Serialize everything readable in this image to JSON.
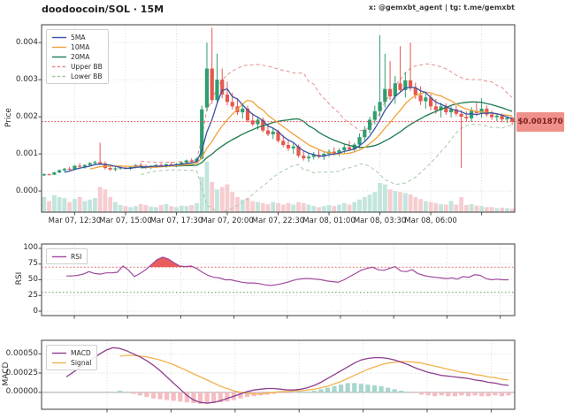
{
  "header": {
    "title": "doodoocoin/SOL · 15M",
    "watermark": "x: @gemxbt_agent | tg: t.me/gemxbt"
  },
  "colors": {
    "background": "#ffffff",
    "candle_up": "#2f9e70",
    "candle_down": "#e5584e",
    "vol_up": "#c3e5dd",
    "vol_down": "#f6cdd0",
    "ma5": "#3a53a4",
    "ma10": "#f2a23c",
    "ma20": "#1d7a4f",
    "bb_upper": "#e88d8d",
    "bb_lower": "#a9c7a9",
    "grid": "#d0d0d0",
    "axis": "#4d4d4d",
    "text": "#2b2b2b",
    "price_line": "#e04f4f",
    "price_tag_bg": "#f0908a",
    "price_tag_text": "#7a1f1f",
    "rsi_line": "#a04a9e",
    "rsi_fill": "#e84b4b",
    "overbought_line": "#e06666",
    "oversold_line": "#4ca64c",
    "macd_line": "#8e3e90",
    "signal_line": "#f2b24e",
    "hist_pos": "#a8d6ce",
    "hist_neg": "#f5bcc1",
    "zero_line": "#aaaaaa"
  },
  "chart_data": [
    {
      "type": "candlestick",
      "title": "doodoocoin/SOL · 15M",
      "ylabel": "Price",
      "ylim": [
        -0.00057,
        0.00448
      ],
      "ytick_values": [
        0.0,
        0.001,
        0.002,
        0.003,
        0.004
      ],
      "ytick_labels": [
        "0.000",
        "0.001",
        "0.002",
        "0.003",
        "0.004"
      ],
      "xtick_labels": [
        "Mar 07, 12:30",
        "Mar 07, 15:00",
        "Mar 07, 17:30",
        "Mar 07, 20:00",
        "Mar 07, 22:30",
        "Mar 08, 01:00",
        "Mar 08, 03:30",
        "Mar 08, 06:00",
        ""
      ],
      "legend": [
        {
          "label": "5MA",
          "color": "#3a53a4",
          "dash": false
        },
        {
          "label": "10MA",
          "color": "#f2a23c",
          "dash": false
        },
        {
          "label": "20MA",
          "color": "#1d7a4f",
          "dash": false
        },
        {
          "label": "Upper BB",
          "color": "#e88d8d",
          "dash": true
        },
        {
          "label": "Lower BB",
          "color": "#a9c7a9",
          "dash": true
        }
      ],
      "ma_windows": [
        5,
        10,
        20
      ],
      "bb_window": 20,
      "bb_mult": 2,
      "current_price": 0.00187,
      "price_tag_label": "$0.001870",
      "candles": [
        [
          0.00042,
          0.00048,
          0.0004,
          0.00045
        ],
        [
          0.00045,
          0.00047,
          0.00042,
          0.00044
        ],
        [
          0.00044,
          0.00052,
          0.00043,
          0.0005
        ],
        [
          0.0005,
          0.00058,
          0.00048,
          0.00056
        ],
        [
          0.00056,
          0.00062,
          0.00052,
          0.0006
        ],
        [
          0.0006,
          0.00065,
          0.00055,
          0.00058
        ],
        [
          0.00058,
          0.0007,
          0.00056,
          0.00068
        ],
        [
          0.00068,
          0.00075,
          0.00062,
          0.00065
        ],
        [
          0.00065,
          0.00072,
          0.0006,
          0.0007
        ],
        [
          0.0007,
          0.00078,
          0.00066,
          0.00075
        ],
        [
          0.00075,
          0.00082,
          0.0007,
          0.00078
        ],
        [
          0.00078,
          0.0013,
          0.0007,
          0.00074
        ],
        [
          0.00074,
          0.0008,
          0.00058,
          0.00062
        ],
        [
          0.00062,
          0.00068,
          0.00054,
          0.00058
        ],
        [
          0.00058,
          0.00064,
          0.00053,
          0.00061
        ],
        [
          0.00061,
          0.00066,
          0.00057,
          0.00063
        ],
        [
          0.00063,
          0.00068,
          0.00058,
          0.0006
        ],
        [
          0.0006,
          0.00067,
          0.00056,
          0.00065
        ],
        [
          0.00065,
          0.00072,
          0.00061,
          0.0007
        ],
        [
          0.0007,
          0.00076,
          0.00064,
          0.00067
        ],
        [
          0.00067,
          0.00071,
          0.0006,
          0.00063
        ],
        [
          0.00063,
          0.00069,
          0.00059,
          0.00066
        ],
        [
          0.00066,
          0.00073,
          0.00062,
          0.0007
        ],
        [
          0.0007,
          0.00075,
          0.00065,
          0.00068
        ],
        [
          0.00068,
          0.00074,
          0.00063,
          0.00072
        ],
        [
          0.00072,
          0.00078,
          0.00066,
          0.00069
        ],
        [
          0.00069,
          0.00076,
          0.00064,
          0.00073
        ],
        [
          0.00073,
          0.0008,
          0.00068,
          0.00077
        ],
        [
          0.00077,
          0.00085,
          0.00072,
          0.00082
        ],
        [
          0.00082,
          0.00088,
          0.00076,
          0.00079
        ],
        [
          0.00079,
          0.0009,
          0.00075,
          0.00087
        ],
        [
          0.00087,
          0.0023,
          0.00085,
          0.0022
        ],
        [
          0.00225,
          0.004,
          0.00215,
          0.0033
        ],
        [
          0.0033,
          0.0044,
          0.00235,
          0.00245
        ],
        [
          0.00245,
          0.0037,
          0.00235,
          0.003
        ],
        [
          0.003,
          0.0033,
          0.0025,
          0.0026
        ],
        [
          0.0026,
          0.00295,
          0.0023,
          0.0024
        ],
        [
          0.0024,
          0.00265,
          0.0022,
          0.00228
        ],
        [
          0.00228,
          0.0025,
          0.00205,
          0.00212
        ],
        [
          0.00212,
          0.00235,
          0.00195,
          0.00222
        ],
        [
          0.00222,
          0.0023,
          0.00185,
          0.0019
        ],
        [
          0.0019,
          0.0021,
          0.00175,
          0.0018
        ],
        [
          0.0018,
          0.002,
          0.00165,
          0.00192
        ],
        [
          0.00192,
          0.00198,
          0.00158,
          0.00163
        ],
        [
          0.00163,
          0.0018,
          0.00148,
          0.00153
        ],
        [
          0.00153,
          0.0017,
          0.0014,
          0.0016
        ],
        [
          0.0016,
          0.00165,
          0.0013,
          0.00135
        ],
        [
          0.00135,
          0.0015,
          0.00118,
          0.00124
        ],
        [
          0.00124,
          0.00138,
          0.00108,
          0.00115
        ],
        [
          0.00115,
          0.0013,
          0.001,
          0.0012
        ],
        [
          0.0012,
          0.00125,
          0.0009,
          0.00095
        ],
        [
          0.00095,
          0.0011,
          0.00082,
          0.00088
        ],
        [
          0.00088,
          0.001,
          0.00078,
          0.00092
        ],
        [
          0.00092,
          0.00105,
          0.00085,
          0.00098
        ],
        [
          0.00098,
          0.0011,
          0.00088,
          0.00093
        ],
        [
          0.00093,
          0.00104,
          0.00084,
          0.001
        ],
        [
          0.001,
          0.00112,
          0.00092,
          0.00106
        ],
        [
          0.00106,
          0.00118,
          0.00096,
          0.00101
        ],
        [
          0.00101,
          0.00115,
          0.00094,
          0.0011
        ],
        [
          0.0011,
          0.00125,
          0.001,
          0.00118
        ],
        [
          0.00118,
          0.00135,
          0.00108,
          0.00112
        ],
        [
          0.00112,
          0.0013,
          0.00104,
          0.00125
        ],
        [
          0.00125,
          0.00155,
          0.00115,
          0.00145
        ],
        [
          0.00145,
          0.00175,
          0.00135,
          0.00165
        ],
        [
          0.00165,
          0.002,
          0.00155,
          0.00192
        ],
        [
          0.00192,
          0.0023,
          0.0018,
          0.00215
        ],
        [
          0.00215,
          0.0042,
          0.002,
          0.0024
        ],
        [
          0.0024,
          0.0037,
          0.00225,
          0.00275
        ],
        [
          0.00275,
          0.0035,
          0.00245,
          0.00255
        ],
        [
          0.00255,
          0.0031,
          0.00235,
          0.0029
        ],
        [
          0.0029,
          0.0039,
          0.00265,
          0.00272
        ],
        [
          0.00272,
          0.0032,
          0.00252,
          0.00298
        ],
        [
          0.00298,
          0.004,
          0.0027,
          0.00278
        ],
        [
          0.00278,
          0.00292,
          0.00248,
          0.00258
        ],
        [
          0.00258,
          0.00282,
          0.00232,
          0.00242
        ],
        [
          0.00242,
          0.00268,
          0.00222,
          0.00252
        ],
        [
          0.00252,
          0.00262,
          0.00218,
          0.00228
        ],
        [
          0.00228,
          0.00248,
          0.00208,
          0.00218
        ],
        [
          0.00218,
          0.00238,
          0.00198,
          0.00228
        ],
        [
          0.00228,
          0.00236,
          0.00205,
          0.00212
        ],
        [
          0.00212,
          0.00228,
          0.00198,
          0.0022
        ],
        [
          0.0022,
          0.0023,
          0.00202,
          0.00208
        ],
        [
          0.00208,
          0.00218,
          0.00062,
          0.002
        ],
        [
          0.002,
          0.00215,
          0.00188,
          0.00196
        ],
        [
          0.00196,
          0.00226,
          0.00186,
          0.00216
        ],
        [
          0.00216,
          0.00238,
          0.00202,
          0.0021
        ],
        [
          0.0021,
          0.0025,
          0.00198,
          0.00222
        ],
        [
          0.00222,
          0.0023,
          0.002,
          0.00206
        ],
        [
          0.00206,
          0.00216,
          0.00192,
          0.00199
        ],
        [
          0.00199,
          0.00209,
          0.00188,
          0.00203
        ],
        [
          0.00203,
          0.00209,
          0.00185,
          0.00193
        ],
        [
          0.00193,
          0.00201,
          0.00183,
          0.00197
        ],
        [
          0.00197,
          0.002,
          0.00178,
          0.00187
        ]
      ],
      "volume": [
        0.3,
        0.22,
        0.34,
        0.3,
        0.28,
        0.2,
        0.26,
        0.3,
        0.22,
        0.25,
        0.28,
        0.5,
        0.45,
        0.3,
        0.2,
        0.14,
        0.12,
        0.1,
        0.12,
        0.16,
        0.14,
        0.11,
        0.1,
        0.14,
        0.16,
        0.12,
        0.1,
        0.13,
        0.12,
        0.14,
        0.18,
        0.7,
        1.0,
        0.6,
        0.45,
        0.5,
        0.55,
        0.4,
        0.3,
        0.25,
        0.28,
        0.22,
        0.2,
        0.18,
        0.16,
        0.2,
        0.18,
        0.15,
        0.18,
        0.15,
        0.2,
        0.18,
        0.15,
        0.12,
        0.1,
        0.12,
        0.14,
        0.12,
        0.15,
        0.18,
        0.15,
        0.2,
        0.25,
        0.3,
        0.35,
        0.4,
        0.58,
        0.55,
        0.45,
        0.42,
        0.4,
        0.38,
        0.35,
        0.3,
        0.26,
        0.22,
        0.2,
        0.18,
        0.16,
        0.15,
        0.22,
        0.15,
        0.3,
        0.14,
        0.16,
        0.13,
        0.12,
        0.1,
        0.1,
        0.08,
        0.09,
        0.08,
        0.07
      ]
    },
    {
      "type": "line",
      "ylabel": "RSI",
      "ylim": [
        -7,
        107
      ],
      "ytick_values": [
        0,
        25,
        50,
        75,
        100
      ],
      "ytick_labels": [
        "0",
        "25",
        "50",
        "75",
        "100"
      ],
      "legend": [
        {
          "label": "RSI",
          "color": "#a04a9e",
          "dash": false
        }
      ],
      "overbought": 70,
      "oversold": 30,
      "values": [
        56,
        56,
        57,
        59,
        63,
        60,
        59,
        61,
        61,
        62,
        72,
        65,
        55,
        60,
        66,
        74,
        82,
        86,
        83,
        77,
        72,
        71,
        72,
        68,
        62,
        57,
        54,
        53,
        50,
        50,
        48,
        46,
        45,
        45,
        44,
        42,
        41,
        42,
        44,
        46,
        49,
        51,
        52,
        52,
        51,
        50,
        48,
        47,
        46,
        50,
        55,
        60,
        65,
        68,
        70,
        66,
        65,
        68,
        71,
        64,
        63,
        66,
        60,
        57,
        55,
        54,
        53,
        52,
        53,
        51,
        55,
        54,
        58,
        57,
        52,
        50,
        51,
        50,
        50
      ]
    },
    {
      "type": "line+bar",
      "ylabel": "MACD",
      "ylim": [
        -0.00022,
        0.000675
      ],
      "ytick_values": [
        0.0,
        0.00025,
        0.0005
      ],
      "ytick_labels": [
        "0.00000",
        "0.00025",
        "0.00050"
      ],
      "legend": [
        {
          "label": "MACD",
          "color": "#8e3e90",
          "dash": false
        },
        {
          "label": "Signal",
          "color": "#f2b24e",
          "dash": false
        }
      ],
      "signal_offset": 8,
      "macd": [
        0.0002,
        0.00026,
        0.00032,
        0.00038,
        0.00044,
        0.0005,
        0.00055,
        0.00058,
        0.00057,
        0.00054,
        0.0005,
        0.00046,
        0.00041,
        0.00035,
        0.00028,
        0.0002,
        0.00012,
        4e-05,
        -4e-05,
        -0.0001,
        -0.00013,
        -0.00014,
        -0.00013,
        -0.00011,
        -8e-05,
        -5e-05,
        -2e-05,
        1e-05,
        3e-05,
        4e-05,
        5e-05,
        5e-05,
        4e-05,
        3e-05,
        3e-05,
        4e-05,
        6e-05,
        9e-05,
        0.00013,
        0.00018,
        0.00023,
        0.00028,
        0.00033,
        0.00038,
        0.00042,
        0.00044,
        0.00045,
        0.00045,
        0.00044,
        0.00042,
        0.00039,
        0.00036,
        0.00032,
        0.00029,
        0.00026,
        0.00024,
        0.00022,
        0.00021,
        0.0002,
        0.00019,
        0.00018,
        0.00016,
        0.00015,
        0.00013,
        0.00012,
        0.0001,
        9e-05
      ],
      "signal": [
        0.00047,
        0.00048,
        0.00048,
        0.00047,
        0.00046,
        0.00044,
        0.00042,
        0.00039,
        0.00036,
        0.00032,
        0.00028,
        0.00024,
        0.0002,
        0.00016,
        0.00012,
        8e-05,
        5e-05,
        2e-05,
        0.0,
        -1e-05,
        -2e-05,
        -2e-05,
        -1e-05,
        0.0,
        1e-05,
        1e-05,
        2e-05,
        2e-05,
        3e-05,
        4e-05,
        6e-05,
        8e-05,
        0.00011,
        0.00014,
        0.00018,
        0.00022,
        0.00026,
        0.0003,
        0.00033,
        0.00036,
        0.00038,
        0.00039,
        0.0004,
        0.0004,
        0.00039,
        0.00038,
        0.00036,
        0.00034,
        0.00032,
        0.0003,
        0.00028,
        0.00026,
        0.00025,
        0.00023,
        0.00022,
        0.0002,
        0.00019,
        0.00017,
        0.00016
      ],
      "histogram": [
        2e-05,
        1e-05,
        -2e-05,
        -4e-05,
        -6e-05,
        -8e-05,
        -9e-05,
        -0.0001,
        -0.00011,
        -0.00012,
        -0.00013,
        -0.00014,
        -0.00015,
        -0.00015,
        -0.00014,
        -0.00013,
        -0.00012,
        -0.0001,
        -8e-05,
        -6e-05,
        -5e-05,
        -4e-05,
        -3e-05,
        -2e-05,
        -1e-05,
        -1e-05,
        0.0,
        1e-05,
        1e-05,
        2e-05,
        4e-05,
        6e-05,
        8e-05,
        0.0001,
        0.00012,
        0.00012,
        0.00011,
        0.0001,
        9e-05,
        8e-05,
        6e-05,
        4e-05,
        2e-05,
        1e-05,
        -1e-05,
        -3e-05,
        -4e-05,
        -5e-05,
        -4e-05,
        -5e-05,
        -5e-05,
        -4e-05,
        -5e-05,
        -4e-05,
        -5e-05,
        -5e-05,
        -4e-05,
        -5e-05,
        -4e-05
      ]
    }
  ]
}
